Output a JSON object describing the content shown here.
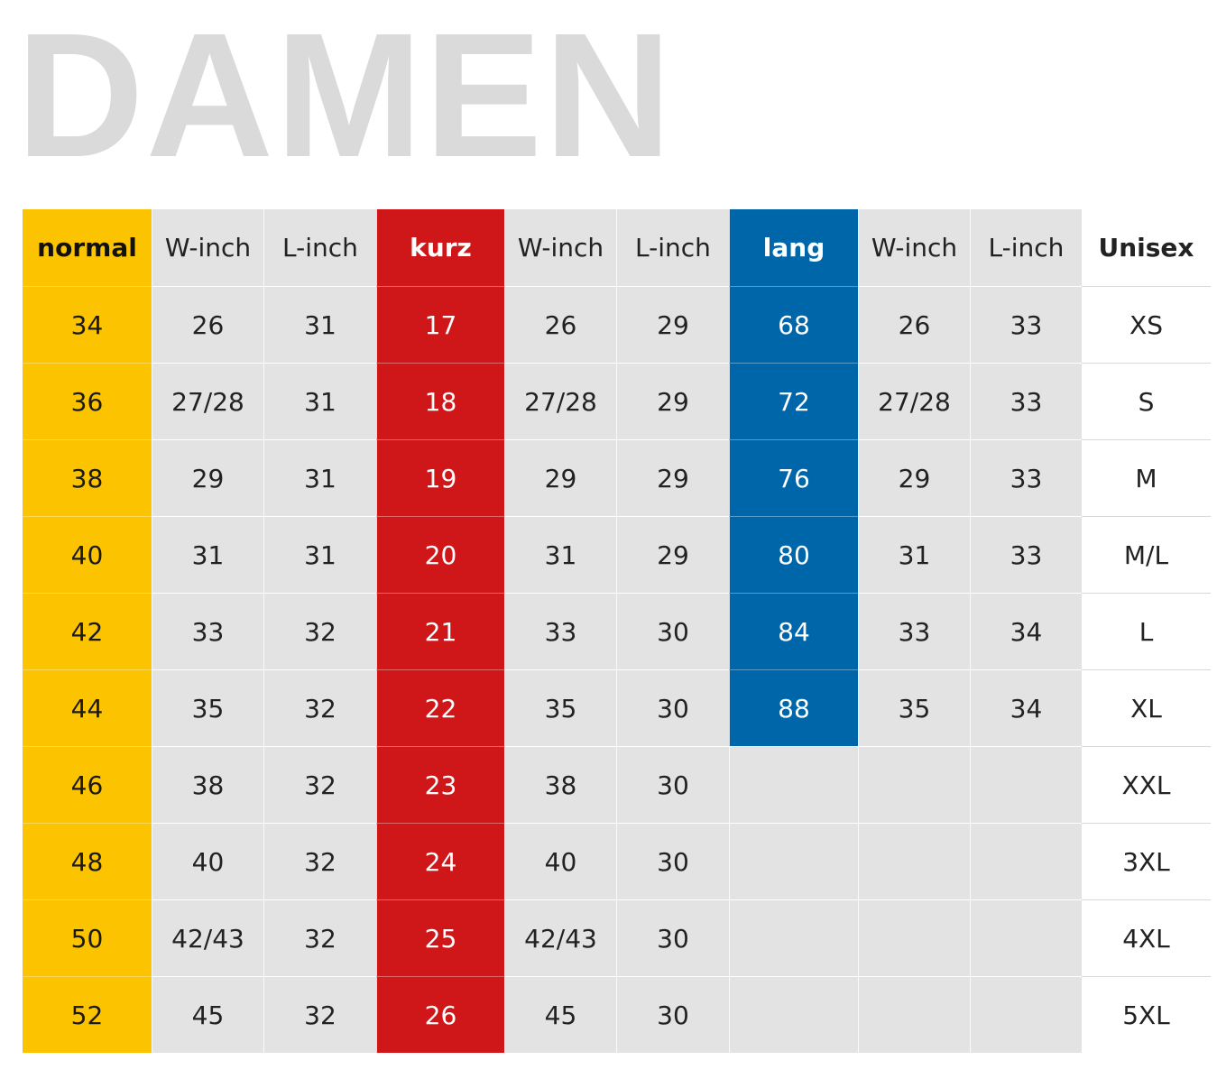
{
  "title": "DAMEN",
  "table": {
    "header": [
      "normal",
      "W-inch",
      "L-inch",
      "kurz",
      "W-inch",
      "L-inch",
      "lang",
      "W-inch",
      "L-inch",
      "Unisex"
    ],
    "rows": [
      [
        "34",
        "26",
        "31",
        "17",
        "26",
        "29",
        "68",
        "26",
        "33",
        "XS"
      ],
      [
        "36",
        "27/28",
        "31",
        "18",
        "27/28",
        "29",
        "72",
        "27/28",
        "33",
        "S"
      ],
      [
        "38",
        "29",
        "31",
        "19",
        "29",
        "29",
        "76",
        "29",
        "33",
        "M"
      ],
      [
        "40",
        "31",
        "31",
        "20",
        "31",
        "29",
        "80",
        "31",
        "33",
        "M/L"
      ],
      [
        "42",
        "33",
        "32",
        "21",
        "33",
        "30",
        "84",
        "33",
        "34",
        "L"
      ],
      [
        "44",
        "35",
        "32",
        "22",
        "35",
        "30",
        "88",
        "35",
        "34",
        "XL"
      ],
      [
        "46",
        "38",
        "32",
        "23",
        "38",
        "30",
        null,
        null,
        null,
        "XXL"
      ],
      [
        "48",
        "40",
        "32",
        "24",
        "40",
        "30",
        null,
        null,
        null,
        "3XL"
      ],
      [
        "50",
        "42/43",
        "32",
        "25",
        "42/43",
        "30",
        null,
        null,
        null,
        "4XL"
      ],
      [
        "52",
        "45",
        "32",
        "26",
        "45",
        "30",
        null,
        null,
        null,
        "5XL"
      ]
    ]
  }
}
